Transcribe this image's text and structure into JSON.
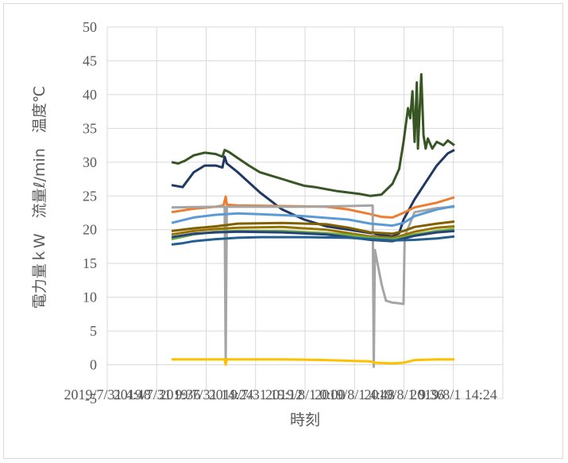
{
  "chart_data": {
    "type": "line",
    "xlabel": "時刻",
    "ylabel": "電力量ｋW　流量ℓ/min　温度℃",
    "ylim": [
      -5,
      50
    ],
    "yticks": [
      -5,
      0,
      5,
      10,
      15,
      20,
      25,
      30,
      35,
      40,
      45,
      50
    ],
    "xtick_labels": [
      "2019/7/31 4:48",
      "2019/7/31 9:36",
      "2019/7/31 14:24",
      "2019/7/31 19:12",
      "2019/8/1 0:00",
      "2019/8/1 4:48",
      "2019/8/1 9:36",
      "2019/8/1 14:24"
    ],
    "grid": "both",
    "legend": "none",
    "series": [
      {
        "color": "#375623",
        "points": [
          [
            0,
            30.0
          ],
          [
            0.3,
            29.8
          ],
          [
            0.6,
            30.2
          ],
          [
            1,
            31.0
          ],
          [
            1.5,
            31.4
          ],
          [
            2,
            31.2
          ],
          [
            2.3,
            30.8
          ],
          [
            2.4,
            31.8
          ],
          [
            2.6,
            31.5
          ],
          [
            3,
            30.6
          ],
          [
            3.5,
            29.5
          ],
          [
            4,
            28.5
          ],
          [
            4.5,
            28.0
          ],
          [
            5,
            27.5
          ],
          [
            5.5,
            27.0
          ],
          [
            6,
            26.5
          ],
          [
            6.5,
            26.3
          ],
          [
            7,
            26.0
          ],
          [
            7.5,
            25.7
          ],
          [
            8,
            25.5
          ],
          [
            8.5,
            25.3
          ],
          [
            9,
            25.0
          ],
          [
            9.5,
            25.2
          ],
          [
            10,
            26.8
          ],
          [
            10.3,
            29
          ],
          [
            10.5,
            33
          ],
          [
            10.7,
            38
          ],
          [
            10.8,
            36.5
          ],
          [
            10.9,
            40.5
          ],
          [
            11.0,
            33
          ],
          [
            11.1,
            41.8
          ],
          [
            11.15,
            32
          ],
          [
            11.3,
            43
          ],
          [
            11.4,
            34
          ],
          [
            11.5,
            32
          ],
          [
            11.6,
            33.5
          ],
          [
            11.8,
            32
          ],
          [
            12,
            33
          ],
          [
            12.3,
            32.5
          ],
          [
            12.5,
            33.2
          ],
          [
            12.8,
            32.5
          ]
        ]
      },
      {
        "color": "#203864",
        "points": [
          [
            0,
            26.6
          ],
          [
            0.5,
            26.3
          ],
          [
            1,
            28.5
          ],
          [
            1.5,
            29.5
          ],
          [
            2,
            29.5
          ],
          [
            2.3,
            29.2
          ],
          [
            2.4,
            30.8
          ],
          [
            2.5,
            29.8
          ],
          [
            3,
            28.5
          ],
          [
            4,
            25.5
          ],
          [
            5,
            23
          ],
          [
            6,
            21.5
          ],
          [
            7,
            20.5
          ],
          [
            8,
            20.0
          ],
          [
            9,
            19.5
          ],
          [
            9.5,
            19.2
          ],
          [
            10,
            19.0
          ],
          [
            10.3,
            19.5
          ],
          [
            10.5,
            21.5
          ],
          [
            11,
            24.5
          ],
          [
            11.5,
            27
          ],
          [
            12,
            29.5
          ],
          [
            12.5,
            31.3
          ],
          [
            12.8,
            31.8
          ]
        ]
      },
      {
        "color": "#ed7d31",
        "points": [
          [
            0,
            22.6
          ],
          [
            1,
            23.1
          ],
          [
            2,
            23.4
          ],
          [
            2.35,
            23.6
          ],
          [
            2.45,
            24.9
          ],
          [
            2.5,
            23.7
          ],
          [
            3,
            23.6
          ],
          [
            5,
            23.5
          ],
          [
            7,
            23.4
          ],
          [
            8,
            23.0
          ],
          [
            9,
            22.3
          ],
          [
            9.5,
            21.9
          ],
          [
            10,
            21.8
          ],
          [
            10.5,
            22.5
          ],
          [
            11,
            23.3
          ],
          [
            12,
            24.0
          ],
          [
            12.8,
            24.8
          ]
        ]
      },
      {
        "color": "#a5a5a5",
        "points": [
          [
            0,
            23.3
          ],
          [
            2,
            23.4
          ],
          [
            2.4,
            23.4
          ],
          [
            2.45,
            0.5
          ],
          [
            2.5,
            23.4
          ],
          [
            4,
            23.4
          ],
          [
            6,
            23.4
          ],
          [
            8,
            23.5
          ],
          [
            9.1,
            23.6
          ],
          [
            9.15,
            -0.3
          ],
          [
            9.2,
            17
          ],
          [
            9.5,
            12
          ],
          [
            9.7,
            9.5
          ],
          [
            10,
            9.2
          ],
          [
            10.3,
            9.1
          ],
          [
            10.5,
            9.0
          ],
          [
            10.55,
            19
          ],
          [
            11,
            22.6
          ],
          [
            12,
            23.2
          ],
          [
            12.8,
            23.4
          ]
        ]
      },
      {
        "color": "#5b9bd5",
        "points": [
          [
            0,
            21.0
          ],
          [
            1,
            21.8
          ],
          [
            2,
            22.2
          ],
          [
            3,
            22.4
          ],
          [
            4,
            22.3
          ],
          [
            6,
            22.0
          ],
          [
            8,
            21.5
          ],
          [
            9,
            20.9
          ],
          [
            10,
            20.6
          ],
          [
            10.5,
            21.0
          ],
          [
            11,
            22.0
          ],
          [
            12,
            23.0
          ],
          [
            12.8,
            23.5
          ]
        ]
      },
      {
        "color": "#806000",
        "points": [
          [
            0,
            19.8
          ],
          [
            1,
            20.2
          ],
          [
            2,
            20.5
          ],
          [
            3,
            20.9
          ],
          [
            5,
            21.0
          ],
          [
            7,
            20.8
          ],
          [
            8,
            20.3
          ],
          [
            9,
            19.6
          ],
          [
            10,
            19.4
          ],
          [
            10.5,
            19.8
          ],
          [
            11,
            20.4
          ],
          [
            12,
            20.9
          ],
          [
            12.8,
            21.2
          ]
        ]
      },
      {
        "color": "#997300",
        "points": [
          [
            0,
            19.3
          ],
          [
            1,
            19.8
          ],
          [
            2,
            20.1
          ],
          [
            3,
            20.3
          ],
          [
            5,
            20.4
          ],
          [
            7,
            20.0
          ],
          [
            8,
            19.5
          ],
          [
            9,
            19.0
          ],
          [
            10,
            18.8
          ],
          [
            10.5,
            19.2
          ],
          [
            11,
            19.7
          ],
          [
            12,
            20.3
          ],
          [
            12.8,
            20.5
          ]
        ]
      },
      {
        "color": "#70ad47",
        "points": [
          [
            0,
            18.6
          ],
          [
            1,
            19.3
          ],
          [
            2,
            19.7
          ],
          [
            3,
            19.8
          ],
          [
            5,
            19.8
          ],
          [
            7,
            19.5
          ],
          [
            8,
            19.2
          ],
          [
            9,
            18.8
          ],
          [
            10,
            18.6
          ],
          [
            10.5,
            18.9
          ],
          [
            11,
            19.3
          ],
          [
            12,
            19.8
          ],
          [
            12.8,
            20.1
          ]
        ]
      },
      {
        "color": "#264478",
        "points": [
          [
            0,
            18.9
          ],
          [
            1,
            19.4
          ],
          [
            2,
            19.6
          ],
          [
            3,
            19.7
          ],
          [
            5,
            19.6
          ],
          [
            7,
            19.3
          ],
          [
            8,
            18.9
          ],
          [
            9,
            18.5
          ],
          [
            10,
            18.3
          ],
          [
            10.5,
            18.7
          ],
          [
            11,
            19.1
          ],
          [
            12,
            19.6
          ],
          [
            12.8,
            19.8
          ]
        ]
      },
      {
        "color": "#255e91",
        "points": [
          [
            0,
            17.8
          ],
          [
            0.5,
            18.0
          ],
          [
            1,
            18.3
          ],
          [
            2,
            18.6
          ],
          [
            3,
            18.8
          ],
          [
            4,
            18.9
          ],
          [
            6,
            18.9
          ],
          [
            8,
            18.8
          ],
          [
            9,
            18.6
          ],
          [
            10,
            18.4
          ],
          [
            11,
            18.5
          ],
          [
            12,
            18.7
          ],
          [
            12.8,
            19.0
          ]
        ]
      },
      {
        "color": "#ffc000",
        "points": [
          [
            0,
            0.8
          ],
          [
            2,
            0.8
          ],
          [
            2.4,
            0.8
          ],
          [
            2.45,
            0.0
          ],
          [
            2.5,
            0.8
          ],
          [
            5,
            0.8
          ],
          [
            7,
            0.7
          ],
          [
            8,
            0.6
          ],
          [
            9,
            0.5
          ],
          [
            9.2,
            0.3
          ],
          [
            10,
            0.2
          ],
          [
            10.5,
            0.3
          ],
          [
            11,
            0.7
          ],
          [
            12,
            0.8
          ],
          [
            12.8,
            0.8
          ]
        ]
      }
    ]
  }
}
